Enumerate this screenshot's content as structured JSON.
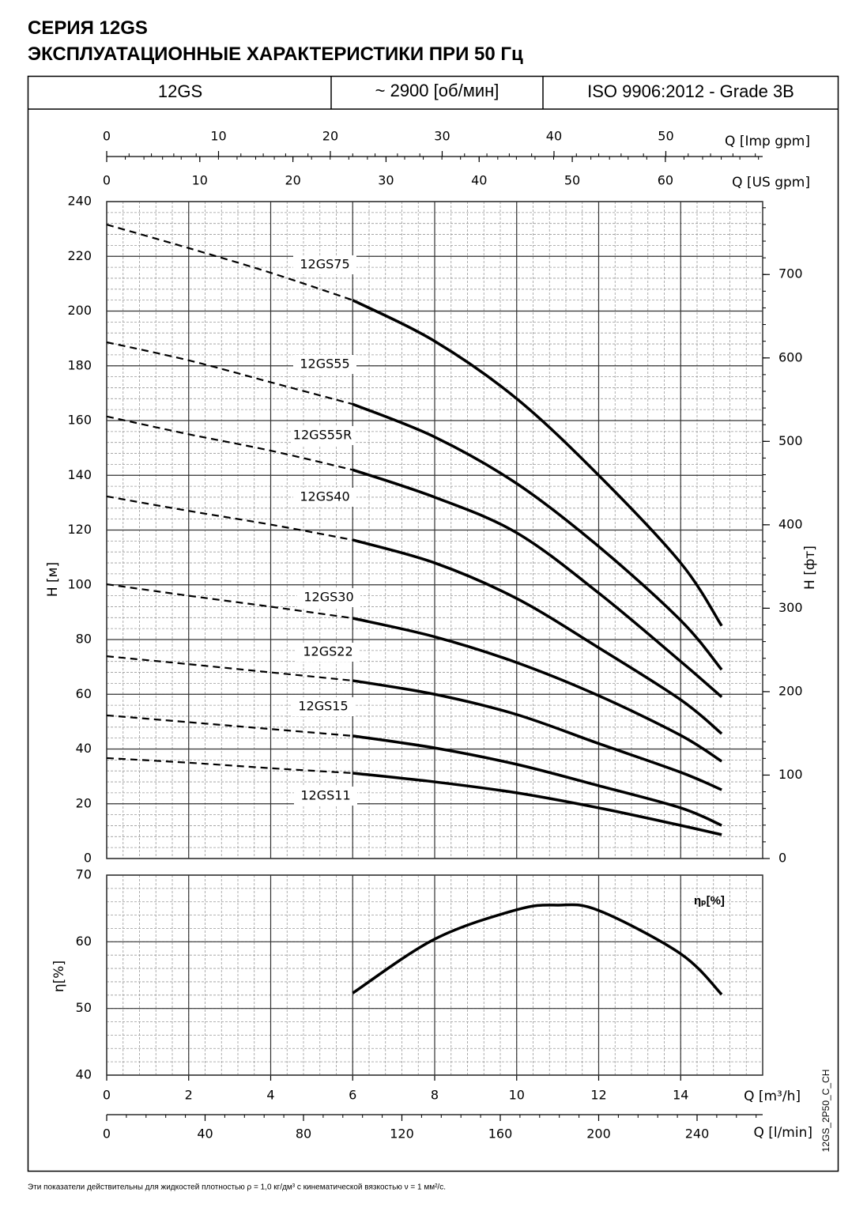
{
  "title": [
    "СЕРИЯ 12GS",
    "ЭКСПЛУАТАЦИОННЫЕ ХАРАКТЕРИСТИКИ ПРИ 50 Гц"
  ],
  "header": [
    "12GS",
    "~ 2900 [об/мин]",
    "ISO 9906:2012 - Grade 3B"
  ],
  "footnote": "Эти показатели действительны для жидкостей плотностью ρ = 1,0 кг/дм³ с кинематической вязкостью ν = 1 мм²/с.",
  "code": "12GS_2P50_C_CH",
  "chart_data": [
    {
      "type": "line",
      "ylabel": "H [м]",
      "y2label": "H [фт]",
      "xlim": [
        0,
        16
      ],
      "ylim": [
        0,
        240
      ],
      "yticks": [
        0,
        20,
        40,
        60,
        80,
        100,
        120,
        140,
        160,
        180,
        200,
        220,
        240
      ],
      "y2lim": [
        0,
        787.4
      ],
      "y2ticks": [
        0,
        100,
        200,
        300,
        400,
        500,
        600,
        700
      ],
      "top_axes": [
        {
          "label": "Q [Imp gpm]",
          "xlim": [
            0,
            58.66
          ],
          "xticks": [
            0,
            10,
            20,
            30,
            40,
            50
          ]
        },
        {
          "label": "Q [US gpm]",
          "xlim": [
            0,
            70.45
          ],
          "xticks": [
            0,
            10,
            20,
            30,
            40,
            50,
            60
          ]
        }
      ],
      "grid": true,
      "dashed_until_x": 6,
      "x": [
        0,
        2,
        4,
        6,
        8,
        10,
        12,
        14,
        15
      ],
      "series": [
        {
          "name": "12GS75",
          "color": "#000000",
          "values": [
            231.6,
            223,
            214,
            204,
            189,
            168,
            140,
            108,
            85
          ]
        },
        {
          "name": "12GS55",
          "color": "#000000",
          "values": [
            188.6,
            182,
            174,
            166,
            154,
            137,
            114,
            87,
            69
          ]
        },
        {
          "name": "12GS55R",
          "color": "#000000",
          "values": [
            161.5,
            155,
            149,
            142,
            132,
            119,
            97,
            72,
            59
          ]
        },
        {
          "name": "12GS40",
          "color": "#000000",
          "values": [
            132.3,
            127,
            122,
            116.4,
            108,
            95,
            77,
            58,
            45.6
          ]
        },
        {
          "name": "12GS30",
          "color": "#000000",
          "values": [
            100.2,
            96,
            92,
            87.8,
            81,
            71.6,
            59.5,
            45,
            35.5
          ]
        },
        {
          "name": "12GS22",
          "color": "#000000",
          "values": [
            73.9,
            71,
            68,
            65,
            60,
            52.6,
            42,
            31.5,
            25.1
          ]
        },
        {
          "name": "12GS15",
          "color": "#000000",
          "values": [
            52.3,
            49.8,
            47.3,
            44.8,
            40.4,
            34.4,
            26.6,
            18.5,
            12.1
          ]
        },
        {
          "name": "12GS11",
          "color": "#000000",
          "values": [
            36.7,
            35,
            33,
            31.2,
            28,
            24,
            18.5,
            12.1,
            8.7
          ]
        }
      ]
    },
    {
      "type": "line",
      "ylabel": "η[%]",
      "xlabel": "Q [m³/h]",
      "xlim": [
        0,
        16
      ],
      "xticks": [
        0,
        2,
        4,
        6,
        8,
        10,
        12,
        14
      ],
      "ylim": [
        40,
        70
      ],
      "yticks": [
        40,
        50,
        60,
        70
      ],
      "bottom_axis": {
        "label": "Q [l/min]",
        "xlim": [
          0,
          266.67
        ],
        "xticks": [
          0,
          40,
          80,
          120,
          160,
          200,
          240
        ]
      },
      "grid": true,
      "x": [
        6,
        8,
        10,
        11,
        12,
        14,
        15
      ],
      "series": [
        {
          "name": "ηₚ[%]",
          "color": "#000000",
          "values": [
            52.3,
            60.4,
            64.8,
            65.5,
            64.7,
            58.2,
            52.1
          ]
        }
      ]
    }
  ]
}
